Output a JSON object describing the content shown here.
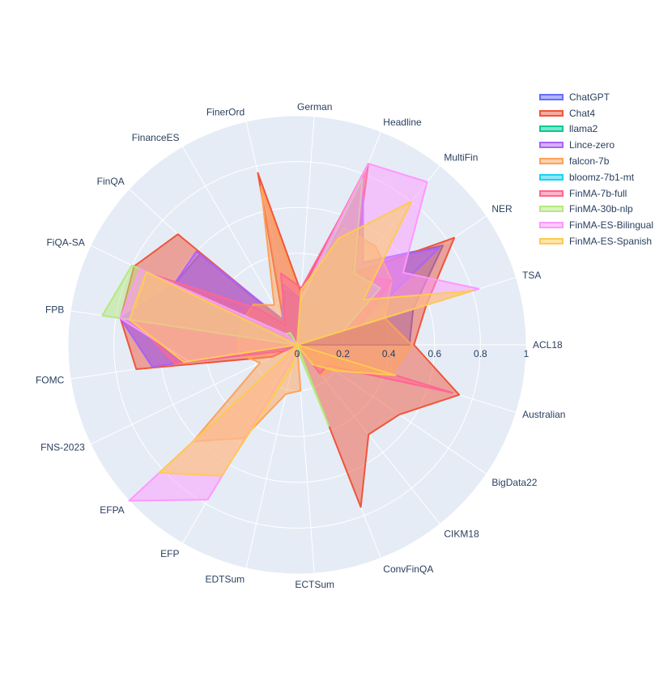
{
  "chart_data": {
    "type": "radar",
    "title": "",
    "axes": [
      "ACL18",
      "TSA",
      "NER",
      "MultiFin",
      "Headline",
      "German",
      "FinerOrd",
      "FinanceES",
      "FinQA",
      "FiQA-SA",
      "FPB",
      "FOMC",
      "FNS-2023",
      "EFPA",
      "EFP",
      "EDTSum",
      "ECTSum",
      "ConvFinQA",
      "CIKM18",
      "BigData22",
      "Australian"
    ],
    "radial_range": [
      0,
      1
    ],
    "radial_ticks": [
      "0",
      "0.2",
      "0.4",
      "0.6",
      "0.8",
      "1"
    ],
    "angular_direction": "counterclockwise",
    "start_angle_deg": 0,
    "grid": true,
    "legend_position": "top-right",
    "series": [
      {
        "name": "ChatGPT",
        "color": "#636efa",
        "values": [
          0.49,
          0.53,
          0.77,
          0.46,
          0.78,
          0.2,
          0.24,
          0.12,
          0.58,
          0.6,
          0.78,
          0.64,
          0.0,
          0.0,
          0.0,
          0.0,
          0.0,
          0.0,
          0.0,
          0.0,
          0.0
        ]
      },
      {
        "name": "Chat4",
        "color": "#EF553B",
        "values": [
          0.51,
          0.59,
          0.83,
          0.4,
          0.85,
          0.23,
          0.77,
          0.12,
          0.71,
          0.79,
          0.78,
          0.71,
          0.12,
          0.0,
          0.0,
          0.0,
          0.0,
          0.76,
          0.5,
          0.54,
          0.74
        ]
      },
      {
        "name": "llama2",
        "color": "#00cc96",
        "values": [
          0.0,
          0.0,
          0.0,
          0.0,
          0.0,
          0.0,
          0.0,
          0.0,
          0.0,
          0.0,
          0.0,
          0.0,
          0.0,
          0.0,
          0.0,
          0.0,
          0.0,
          0.0,
          0.0,
          0.0,
          0.0
        ]
      },
      {
        "name": "Lince-zero",
        "color": "#ab63fa",
        "values": [
          0.0,
          0.28,
          0.75,
          0.46,
          0.79,
          0.2,
          0.27,
          0.13,
          0.6,
          0.6,
          0.78,
          0.64,
          0.02,
          0.0,
          0.0,
          0.0,
          0.0,
          0.0,
          0.0,
          0.0,
          0.0
        ]
      },
      {
        "name": "falcon-7b",
        "color": "#FFA15A",
        "values": [
          0.5,
          0.4,
          0.5,
          0.55,
          0.55,
          0.21,
          0.71,
          0.2,
          0.26,
          0.26,
          0.26,
          0.26,
          0.18,
          0.62,
          0.47,
          0.22,
          0.2,
          0.0,
          0.17,
          0.19,
          0.43
        ]
      },
      {
        "name": "bloomz-7b1-mt",
        "color": "#19d3f3",
        "values": [
          0.0,
          0.0,
          0.0,
          0.0,
          0.0,
          0.0,
          0.0,
          0.0,
          0.0,
          0.0,
          0.0,
          0.0,
          0.0,
          0.0,
          0.0,
          0.0,
          0.0,
          0.0,
          0.0,
          0.0,
          0.0
        ]
      },
      {
        "name": "FinMA-7b-full",
        "color": "#FF6692",
        "values": [
          0.0,
          0.28,
          0.5,
          0.38,
          0.81,
          0.25,
          0.32,
          0.1,
          0.23,
          0.72,
          0.72,
          0.54,
          0.06,
          0.0,
          0.0,
          0.0,
          0.05,
          0.0,
          0.16,
          0.16,
          0.71
        ]
      },
      {
        "name": "FinMA-30b-nlp",
        "color": "#B6E880",
        "values": [
          0.0,
          0.21,
          0.44,
          0.4,
          0.78,
          0.19,
          0.0,
          0.06,
          0.07,
          0.8,
          0.86,
          0.0,
          0.0,
          0.0,
          0.0,
          0.0,
          0.02,
          0.38,
          0.0,
          0.0,
          0.0
        ]
      },
      {
        "name": "FinMA-ES-Bilingual",
        "color": "#FF97FF",
        "values": [
          0.0,
          0.83,
          0.56,
          0.91,
          0.85,
          0.21,
          0.0,
          0.0,
          0.07,
          0.76,
          0.78,
          0.48,
          0.0,
          1.0,
          0.78,
          0.05,
          0.0,
          0.0,
          0.0,
          0.0,
          0.0
        ]
      },
      {
        "name": "FinMA-ES-Spanish",
        "color": "#FECB52",
        "values": [
          0.0,
          0.8,
          0.35,
          0.8,
          0.5,
          0.24,
          0.0,
          0.0,
          0.0,
          0.73,
          0.74,
          0.5,
          0.0,
          0.82,
          0.66,
          0.1,
          0.0,
          0.0,
          0.11,
          0.2,
          0.45
        ]
      }
    ]
  }
}
